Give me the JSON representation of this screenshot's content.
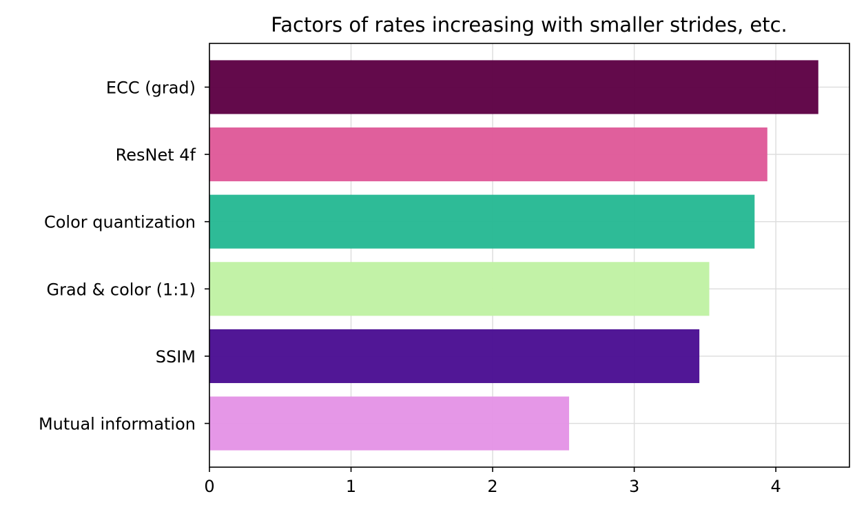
{
  "chart_data": {
    "type": "bar",
    "orientation": "horizontal",
    "title": "Factors of rates increasing with smaller strides, etc.",
    "xlabel": "",
    "ylabel": "",
    "categories": [
      "ECC (grad)",
      "ResNet 4f",
      "Color quantization",
      "Grad & color (1:1)",
      "SSIM",
      "Mutual information"
    ],
    "values": [
      4.3,
      3.94,
      3.85,
      3.53,
      3.46,
      2.54
    ],
    "colors": [
      "#5e0245",
      "#df5a99",
      "#27b994",
      "#c0f2a4",
      "#4b1093",
      "#e494e6"
    ],
    "xlim": [
      0,
      4.52
    ],
    "xticks": [
      0,
      1,
      2,
      3,
      4
    ],
    "grid": true
  }
}
